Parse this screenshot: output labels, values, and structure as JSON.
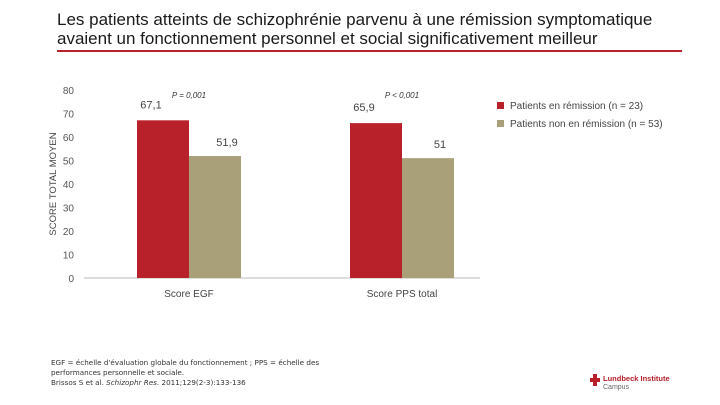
{
  "header": {
    "title_line1": "Les patients atteints de schizophrénie parvenu à une rémission symptomatique",
    "title_line2": "avaient un fonctionnement personnel et social significativement meilleur",
    "accent_color": "#B8202A"
  },
  "chart_data": {
    "type": "bar",
    "title": "",
    "ylabel": "SCORE TOTAL MOYEN",
    "xlabel": "",
    "ylim": [
      0,
      80
    ],
    "yticks": [
      0,
      10,
      20,
      30,
      40,
      50,
      60,
      70,
      80
    ],
    "categories": [
      "Score EGF",
      "Score PPS total"
    ],
    "series": [
      {
        "name": "Patients en rémission (n = 23)",
        "color": "#B8202A",
        "values": [
          67.1,
          65.9
        ],
        "labels": [
          "67,1",
          "65,9"
        ]
      },
      {
        "name": "Patients non en rémission (n = 53)",
        "color": "#A9A07A",
        "values": [
          51.9,
          51
        ],
        "labels": [
          "51,9",
          "51"
        ]
      }
    ],
    "p_values": [
      "P = 0,001",
      "P < 0,001"
    ],
    "legend_position": "top-right",
    "grid": false
  },
  "footnote": {
    "line1": "EGF = échelle d'évaluation globale du fonctionnement ; PPS = échelle des",
    "line2": "performances personnelle et sociale.",
    "citation_authors": "Brissos S et al. ",
    "citation_journal": "Schizophr Res",
    "citation_rest": ". 2011;129(2-3):133-136"
  },
  "logo": {
    "name": "Lundbeck Institute",
    "sub": "Campus"
  }
}
